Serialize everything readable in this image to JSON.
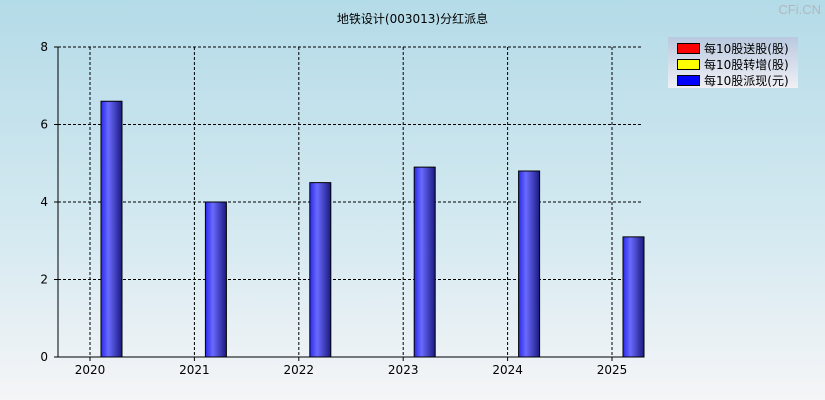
{
  "watermark": "CFi.CN",
  "chart_data": {
    "type": "bar",
    "title": "地铁设计(003013)分红派息",
    "categories": [
      "2020",
      "2021",
      "2022",
      "2023",
      "2024",
      "2025"
    ],
    "series": [
      {
        "name": "每10股送股(股)",
        "color": "#ff0000",
        "values": [
          0,
          0,
          0,
          0,
          0,
          0
        ]
      },
      {
        "name": "每10股转增(股)",
        "color": "#ffff00",
        "values": [
          0,
          0,
          0,
          0,
          0,
          0
        ]
      },
      {
        "name": "每10股派现(元)",
        "color": "#0000ff",
        "values": [
          6.6,
          4.0,
          4.5,
          4.9,
          4.8,
          3.1
        ]
      }
    ],
    "ylim": [
      0,
      8
    ],
    "yticks": [
      0,
      2,
      4,
      6,
      8
    ],
    "grid": true,
    "legend": "top-right"
  }
}
